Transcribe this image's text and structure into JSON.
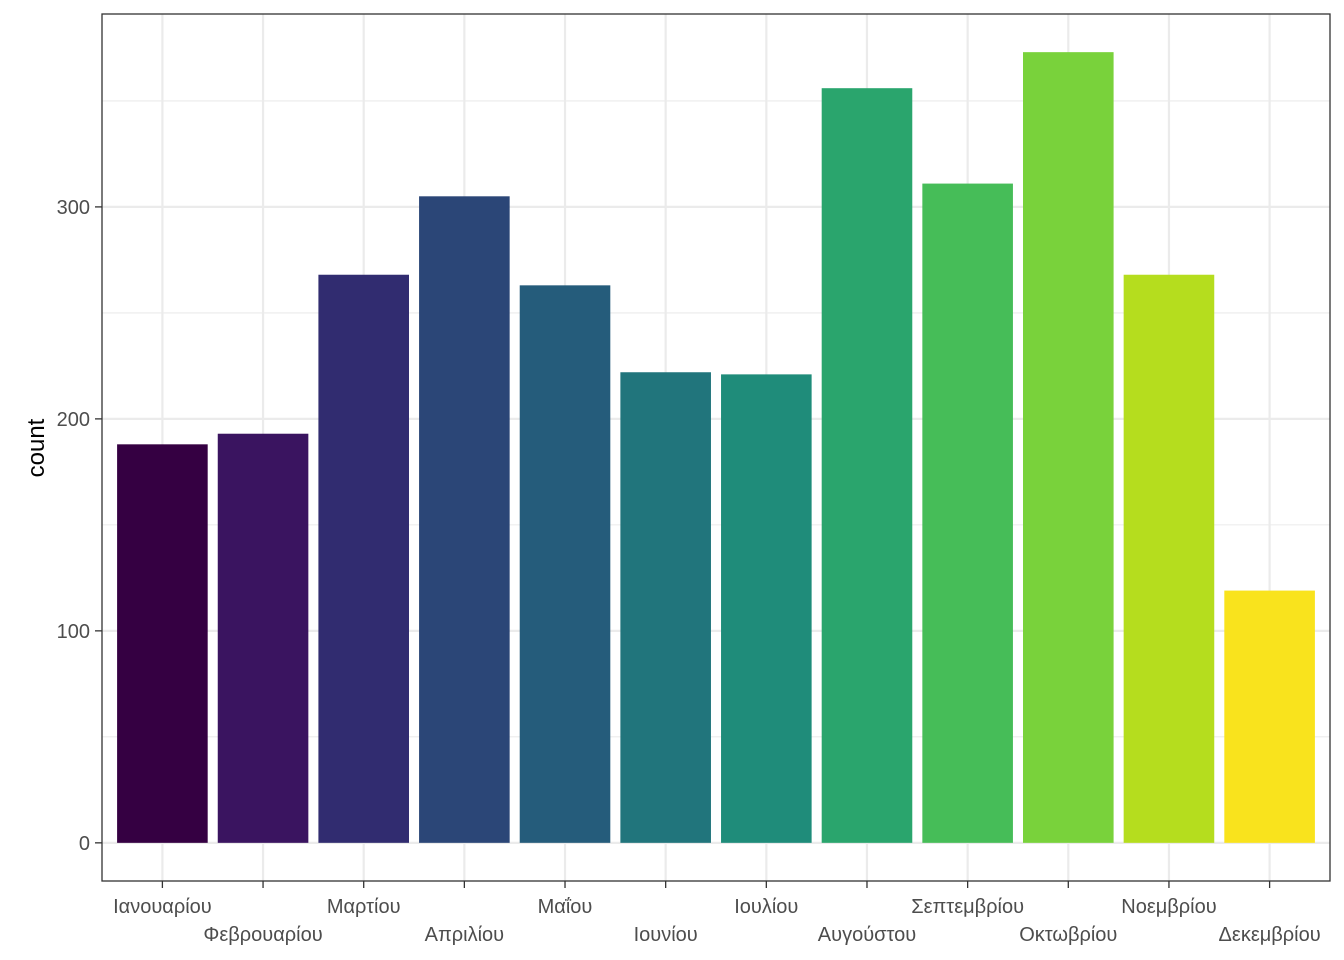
{
  "chart_data": {
    "type": "bar",
    "title": "",
    "xlabel": "",
    "ylabel": "count",
    "categories": [
      "Ιανουαρίου",
      "Φεβρουαρίου",
      "Μαρτίου",
      "Απριλίου",
      "Μαΐου",
      "Ιουνίου",
      "Ιουλίου",
      "Αυγούστου",
      "Σεπτεμβρίου",
      "Οκτωβρίου",
      "Νοεμβρίου",
      "Δεκεμβρίου"
    ],
    "values": [
      188,
      193,
      268,
      305,
      263,
      222,
      221,
      356,
      311,
      373,
      268,
      119
    ],
    "colors": [
      "#350042",
      "#3A1460",
      "#312C70",
      "#2B4677",
      "#255C7B",
      "#21757C",
      "#1F8C7A",
      "#2AA56D",
      "#46BD58",
      "#79D23B",
      "#B5DD1E",
      "#F9E31D"
    ],
    "ylim": [
      -18,
      391
    ],
    "yticks": [
      0,
      100,
      200,
      300
    ],
    "grid": true,
    "legend": "none"
  }
}
